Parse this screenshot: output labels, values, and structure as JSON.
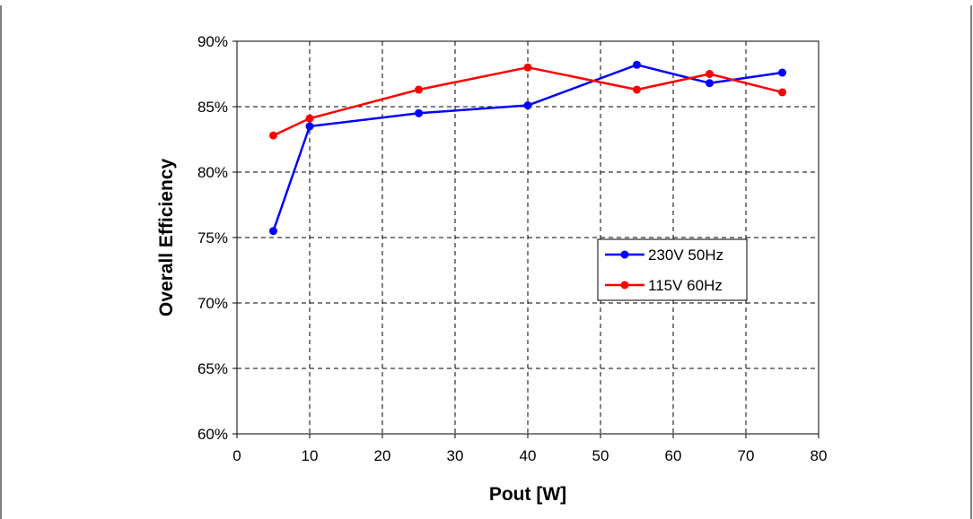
{
  "chart_data": {
    "type": "line",
    "xlabel": "Pout [W]",
    "ylabel": "Overall Efficiency",
    "xlim": [
      0,
      80
    ],
    "ylim": [
      60,
      90
    ],
    "x_ticks": [
      0,
      10,
      20,
      30,
      40,
      50,
      60,
      70,
      80
    ],
    "y_ticks": [
      60,
      65,
      70,
      75,
      80,
      85,
      90
    ],
    "y_tick_format": "percent",
    "grid": true,
    "legend_position": "right-middle",
    "series": [
      {
        "name": "230V 50Hz",
        "color": "#0000ff",
        "points": [
          [
            5,
            75.5
          ],
          [
            10,
            83.5
          ],
          [
            25,
            84.5
          ],
          [
            40,
            85.1
          ],
          [
            55,
            88.2
          ],
          [
            65,
            86.8
          ],
          [
            75,
            87.6
          ]
        ]
      },
      {
        "name": "115V 60Hz",
        "color": "#ff0000",
        "points": [
          [
            5,
            82.8
          ],
          [
            10,
            84.1
          ],
          [
            25,
            86.3
          ],
          [
            40,
            88.0
          ],
          [
            55,
            86.3
          ],
          [
            65,
            87.5
          ],
          [
            75,
            86.1
          ]
        ]
      }
    ]
  }
}
